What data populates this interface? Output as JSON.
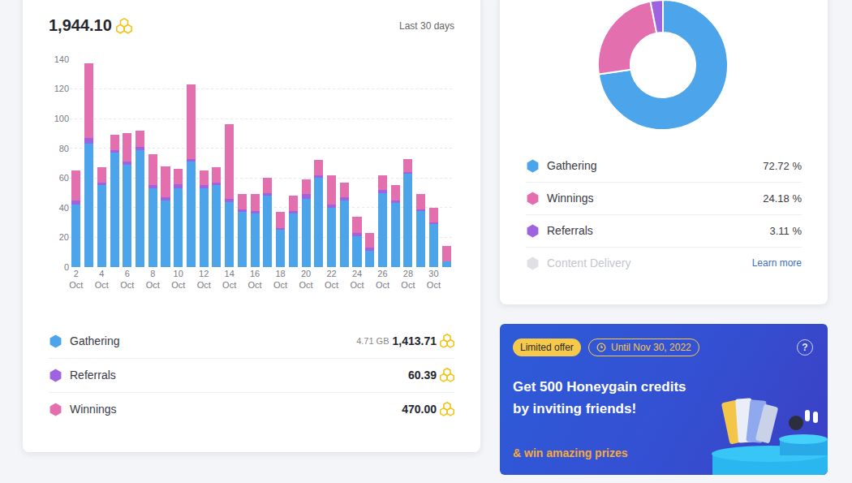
{
  "chart_data": [
    {
      "type": "bar",
      "stacked": true,
      "grid": true,
      "categories": [
        "2 Oct",
        null,
        "4 Oct",
        null,
        "6 Oct",
        null,
        "8 Oct",
        null,
        "10 Oct",
        null,
        "12 Oct",
        null,
        "14 Oct",
        null,
        "16 Oct",
        null,
        "18 Oct",
        null,
        "20 Oct",
        null,
        "22 Oct",
        null,
        "24 Oct",
        null,
        "26 Oct",
        null,
        "28 Oct",
        null,
        "30 Oct",
        null
      ],
      "series": [
        {
          "name": "Gathering",
          "color": "#4ca4ea",
          "values": [
            42,
            83,
            55,
            77,
            69,
            79,
            53,
            45,
            53,
            71,
            53,
            55,
            44,
            37,
            36,
            48,
            25,
            36,
            46,
            60,
            40,
            45,
            21,
            11,
            50,
            43,
            63,
            38,
            29,
            4
          ]
        },
        {
          "name": "Referrals",
          "color": "#a063e0",
          "values": [
            3,
            4,
            2,
            2,
            2,
            2,
            2,
            2,
            3,
            2,
            2,
            2,
            2,
            2,
            2,
            2,
            1,
            2,
            3,
            2,
            2,
            2,
            2,
            2,
            2,
            2,
            1,
            1,
            1,
            0
          ]
        },
        {
          "name": "Winnings",
          "color": "#e46fae",
          "values": [
            20,
            50,
            10,
            10,
            19,
            11,
            21,
            21,
            10,
            50,
            10,
            10,
            50,
            10,
            11,
            10,
            11,
            10,
            10,
            10,
            20,
            10,
            11,
            10,
            10,
            10,
            9,
            10,
            10,
            10
          ]
        }
      ],
      "ylim": [
        0,
        140
      ],
      "yticks": [
        0,
        20,
        40,
        60,
        80,
        100,
        120,
        140
      ]
    },
    {
      "type": "pie",
      "categories": [
        "Gathering",
        "Winnings",
        "Referrals"
      ],
      "values": [
        72.72,
        24.18,
        3.11
      ],
      "value_labels": [
        "72.72 %",
        "24.18 %",
        "3.11 %"
      ],
      "colors": [
        "#4ca4ea",
        "#e46fae",
        "#a063e0"
      ]
    }
  ],
  "summary": {
    "total": "1,944.10",
    "period": "Last 30 days"
  },
  "bar_totals": [
    {
      "data": "4.71 GB",
      "amount": "1,413.71"
    },
    {
      "amount": "60.39"
    },
    {
      "amount": "470.00"
    }
  ],
  "pie_extra": {
    "label": "Content Delivery",
    "link": "Learn more"
  },
  "banner": {
    "badge": "Limited offer",
    "deadline": "Until Nov 30, 2022",
    "headline": "Get 500 Honeygain credits by inviting friends!",
    "subline": "& win amazing prizes",
    "help": "?"
  }
}
